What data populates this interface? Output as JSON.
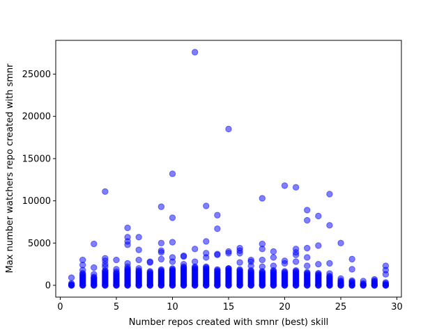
{
  "chart_data": {
    "type": "scatter",
    "title": "",
    "xlabel": "Number repos created with smnr (best) skill",
    "ylabel": "Max number watchers repo created with smnr",
    "xlim": [
      -0.4,
      30.4
    ],
    "ylim": [
      -1400,
      29000
    ],
    "xticks": [
      0,
      5,
      10,
      15,
      20,
      25,
      30
    ],
    "yticks": [
      0,
      5000,
      10000,
      15000,
      20000,
      25000
    ],
    "grid": false,
    "legend": "none",
    "colors": {
      "marker": "#0000ff",
      "marker_opacity": 0.5,
      "axes": "#000000",
      "background": "#ffffff"
    },
    "outliers": [
      [
        1,
        900
      ],
      [
        2,
        3000
      ],
      [
        2,
        2400
      ],
      [
        2,
        1800
      ],
      [
        3,
        4900
      ],
      [
        3,
        2100
      ],
      [
        3,
        1300
      ],
      [
        4,
        11100
      ],
      [
        4,
        3200
      ],
      [
        4,
        2900
      ],
      [
        4,
        2500
      ],
      [
        4,
        2200
      ],
      [
        5,
        3000
      ],
      [
        5,
        1900
      ],
      [
        5,
        1600
      ],
      [
        6,
        6800
      ],
      [
        6,
        5700
      ],
      [
        6,
        5200
      ],
      [
        6,
        4800
      ],
      [
        6,
        2600
      ],
      [
        6,
        2200
      ],
      [
        7,
        5700
      ],
      [
        7,
        4200
      ],
      [
        7,
        3000
      ],
      [
        7,
        2000
      ],
      [
        8,
        2800
      ],
      [
        8,
        2700
      ],
      [
        9,
        9300
      ],
      [
        9,
        5000
      ],
      [
        9,
        4100
      ],
      [
        9,
        3900
      ],
      [
        9,
        3100
      ],
      [
        10,
        13200
      ],
      [
        10,
        8000
      ],
      [
        10,
        5100
      ],
      [
        10,
        3300
      ],
      [
        10,
        2800
      ],
      [
        11,
        3500
      ],
      [
        11,
        3400
      ],
      [
        11,
        2500
      ],
      [
        12,
        27600
      ],
      [
        12,
        4300
      ],
      [
        12,
        2800
      ],
      [
        13,
        9400
      ],
      [
        13,
        5200
      ],
      [
        13,
        3800
      ],
      [
        13,
        3300
      ],
      [
        14,
        8300
      ],
      [
        14,
        6700
      ],
      [
        14,
        3700
      ],
      [
        14,
        3600
      ],
      [
        15,
        18500
      ],
      [
        15,
        4000
      ],
      [
        15,
        3800
      ],
      [
        15,
        2000
      ],
      [
        16,
        4400
      ],
      [
        16,
        4100
      ],
      [
        16,
        3800
      ],
      [
        16,
        2700
      ],
      [
        17,
        3000
      ],
      [
        17,
        2800
      ],
      [
        17,
        2300
      ],
      [
        18,
        10300
      ],
      [
        18,
        4900
      ],
      [
        18,
        4300
      ],
      [
        18,
        3000
      ],
      [
        18,
        2200
      ],
      [
        19,
        4000
      ],
      [
        19,
        3300
      ],
      [
        19,
        2300
      ],
      [
        20,
        11800
      ],
      [
        20,
        2900
      ],
      [
        20,
        2600
      ],
      [
        21,
        11600
      ],
      [
        21,
        4300
      ],
      [
        21,
        3900
      ],
      [
        21,
        3600
      ],
      [
        21,
        2800
      ],
      [
        22,
        8900
      ],
      [
        22,
        7700
      ],
      [
        22,
        4400
      ],
      [
        22,
        3300
      ],
      [
        22,
        2300
      ],
      [
        23,
        8200
      ],
      [
        23,
        4700
      ],
      [
        23,
        2500
      ],
      [
        24,
        10800
      ],
      [
        24,
        7100
      ],
      [
        24,
        2600
      ],
      [
        24,
        1400
      ],
      [
        25,
        5000
      ],
      [
        25,
        800
      ],
      [
        26,
        3100
      ],
      [
        26,
        1900
      ],
      [
        27,
        500
      ],
      [
        28,
        700
      ],
      [
        29,
        2300
      ],
      [
        29,
        1800
      ],
      [
        29,
        1300
      ]
    ],
    "column_max": [
      [
        1,
        300
      ],
      [
        2,
        1500
      ],
      [
        3,
        1000
      ],
      [
        4,
        1800
      ],
      [
        5,
        1500
      ],
      [
        6,
        2000
      ],
      [
        7,
        1800
      ],
      [
        8,
        1700
      ],
      [
        9,
        1900
      ],
      [
        10,
        2000
      ],
      [
        11,
        2200
      ],
      [
        12,
        2200
      ],
      [
        13,
        2200
      ],
      [
        14,
        1900
      ],
      [
        15,
        2000
      ],
      [
        16,
        1900
      ],
      [
        17,
        1800
      ],
      [
        18,
        1700
      ],
      [
        19,
        1800
      ],
      [
        20,
        1700
      ],
      [
        21,
        1800
      ],
      [
        22,
        1600
      ],
      [
        23,
        1500
      ],
      [
        24,
        1200
      ],
      [
        25,
        600
      ],
      [
        26,
        600
      ],
      [
        27,
        300
      ],
      [
        28,
        600
      ],
      [
        29,
        400
      ]
    ]
  }
}
